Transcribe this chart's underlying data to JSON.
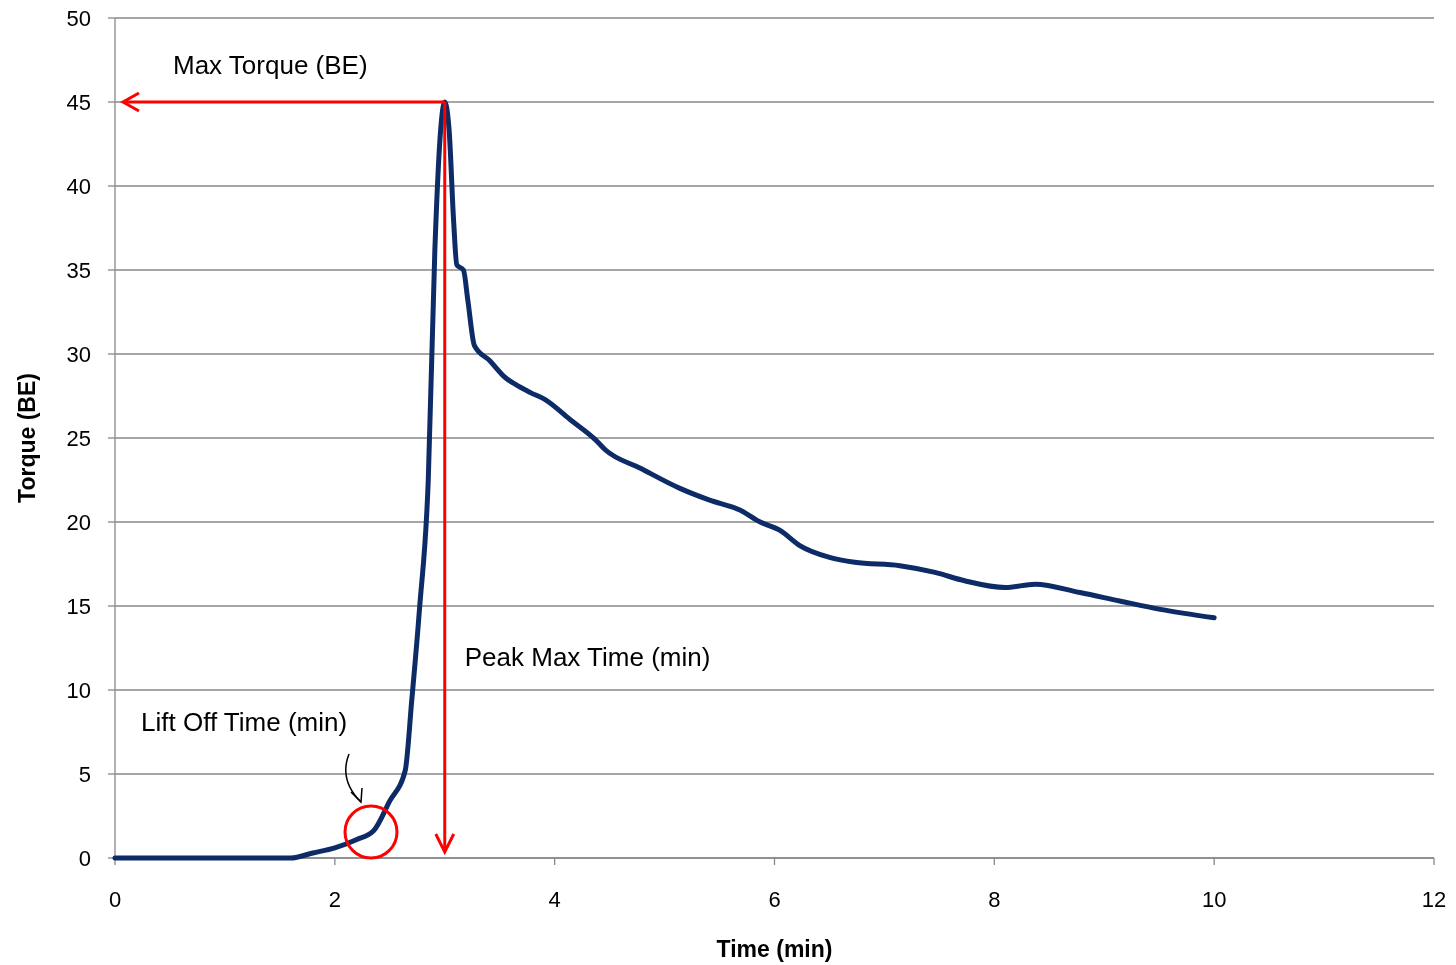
{
  "chart_data": {
    "type": "line",
    "xlabel": "Time (min)",
    "ylabel": "Torque (BE)",
    "xlim": [
      0,
      12
    ],
    "xticks": [
      0,
      2,
      4,
      6,
      8,
      10,
      12
    ],
    "ylim": [
      0,
      50
    ],
    "yticks": [
      0,
      5,
      10,
      15,
      20,
      25,
      30,
      35,
      40,
      45,
      50
    ],
    "grid": "y",
    "ref_lines": [
      {
        "axis": "y",
        "value": 45,
        "label": "Max Torque (BE)",
        "color": "#ff0000"
      },
      {
        "axis": "x",
        "value": 3,
        "label": "Peak Max Time (min)",
        "color": "#ff0000"
      }
    ],
    "series": [
      {
        "color": "#0d2b66",
        "x": [
          0,
          1.6,
          1.8,
          2.0,
          2.2,
          2.35,
          2.5,
          2.64,
          2.7,
          2.77,
          2.85,
          2.91,
          2.97,
          3.0,
          3.04,
          3.08,
          3.11,
          3.17,
          3.21,
          3.27,
          3.41,
          3.55,
          3.64,
          3.78,
          3.91,
          4.14,
          4.37,
          4.46,
          4.78,
          5.14,
          5.41,
          5.69,
          5.87,
          6.05,
          6.23,
          6.5,
          6.73,
          7.14,
          7.46,
          7.73,
          8.1,
          8.37,
          8.78,
          9.14,
          9.51,
          10.0
        ],
        "values": [
          0,
          0,
          0.3,
          0.6,
          1.1,
          1.6,
          3.4,
          5.2,
          9.4,
          14.8,
          22.5,
          36.2,
          43.9,
          45,
          43.3,
          38,
          35.3,
          35,
          33.2,
          30.5,
          29.6,
          28.6,
          28.2,
          27.7,
          27.3,
          26.1,
          24.9,
          24.3,
          23.2,
          22.0,
          21.3,
          20.7,
          20,
          19.5,
          18.6,
          17.9,
          17.6,
          17.4,
          17.0,
          16.5,
          16.1,
          16.3,
          15.8,
          15.3,
          14.8,
          14.3
        ]
      }
    ],
    "annotations": [
      "Lift Off Time (min)"
    ]
  }
}
